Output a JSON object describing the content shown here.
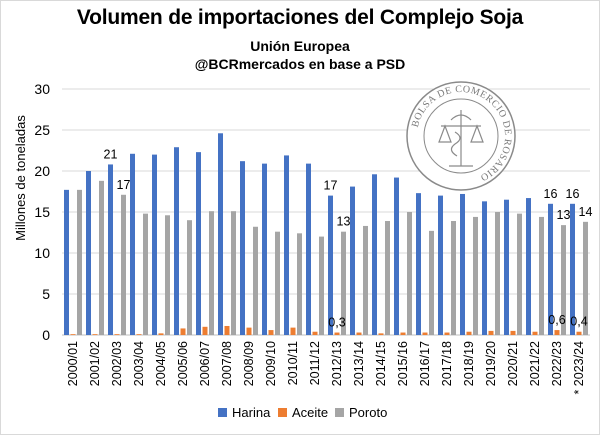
{
  "header": {
    "title": "Volumen de importaciones del Complejo Soja",
    "subtitle": "Unión Europea",
    "source": "@BCRmercados en base a PSD"
  },
  "seal": {
    "text": "BOLSA DE COMERCIO DE ROSARIO"
  },
  "colors": {
    "harina": "#4472c4",
    "aceite": "#ed7d31",
    "poroto": "#a5a5a5"
  },
  "chart_data": {
    "type": "bar",
    "ylabel": "Millones de toneladas",
    "ylim": [
      0,
      30
    ],
    "yticks": [
      0,
      5,
      10,
      15,
      20,
      25,
      30
    ],
    "grid": true,
    "legend_position": "bottom",
    "categories": [
      "2000/01",
      "2001/02",
      "2002/03",
      "2003/04",
      "2004/05",
      "2005/06",
      "2006/07",
      "2007/08",
      "2008/09",
      "2009/10",
      "2010/11",
      "2011/12",
      "2012/13",
      "2013/14",
      "2014/15",
      "2015/16",
      "2016/17",
      "2017/18",
      "2018/19",
      "2019/20",
      "2020/21",
      "2021/22",
      "2022/23",
      "* 2023/24"
    ],
    "series": [
      {
        "name": "Harina",
        "values": [
          17.7,
          20.0,
          20.8,
          22.1,
          22.0,
          22.9,
          22.3,
          24.6,
          21.2,
          20.9,
          21.9,
          20.9,
          17.0,
          18.1,
          19.6,
          19.2,
          17.3,
          17.0,
          17.2,
          16.3,
          16.5,
          16.7,
          16.0,
          16.0
        ]
      },
      {
        "name": "Aceite",
        "values": [
          0.1,
          0.1,
          0.1,
          0.1,
          0.2,
          0.8,
          1.0,
          1.1,
          0.9,
          0.6,
          0.9,
          0.4,
          0.3,
          0.3,
          0.2,
          0.3,
          0.3,
          0.3,
          0.4,
          0.5,
          0.5,
          0.4,
          0.6,
          0.4
        ]
      },
      {
        "name": "Poroto",
        "values": [
          17.7,
          18.8,
          17.1,
          14.8,
          14.6,
          14.0,
          15.1,
          15.1,
          13.2,
          12.6,
          12.4,
          12.0,
          12.6,
          13.3,
          13.9,
          15.0,
          12.7,
          13.9,
          14.4,
          15.0,
          14.8,
          14.4,
          13.4,
          13.8
        ]
      }
    ],
    "annotations": [
      {
        "category": "2002/03",
        "series": "Harina",
        "text": "21"
      },
      {
        "category": "2002/03",
        "series": "Poroto",
        "text": "17"
      },
      {
        "category": "2012/13",
        "series": "Harina",
        "text": "17"
      },
      {
        "category": "2012/13",
        "series": "Poroto",
        "text": "13"
      },
      {
        "category": "2012/13",
        "series": "Aceite",
        "text": "0,3"
      },
      {
        "category": "2022/23",
        "series": "Harina",
        "text": "16"
      },
      {
        "category": "2022/23",
        "series": "Poroto",
        "text": "13"
      },
      {
        "category": "2022/23",
        "series": "Aceite",
        "text": "0,6"
      },
      {
        "category": "* 2023/24",
        "series": "Harina",
        "text": "16"
      },
      {
        "category": "* 2023/24",
        "series": "Poroto",
        "text": "14"
      },
      {
        "category": "* 2023/24",
        "series": "Aceite",
        "text": "0,4"
      }
    ]
  }
}
